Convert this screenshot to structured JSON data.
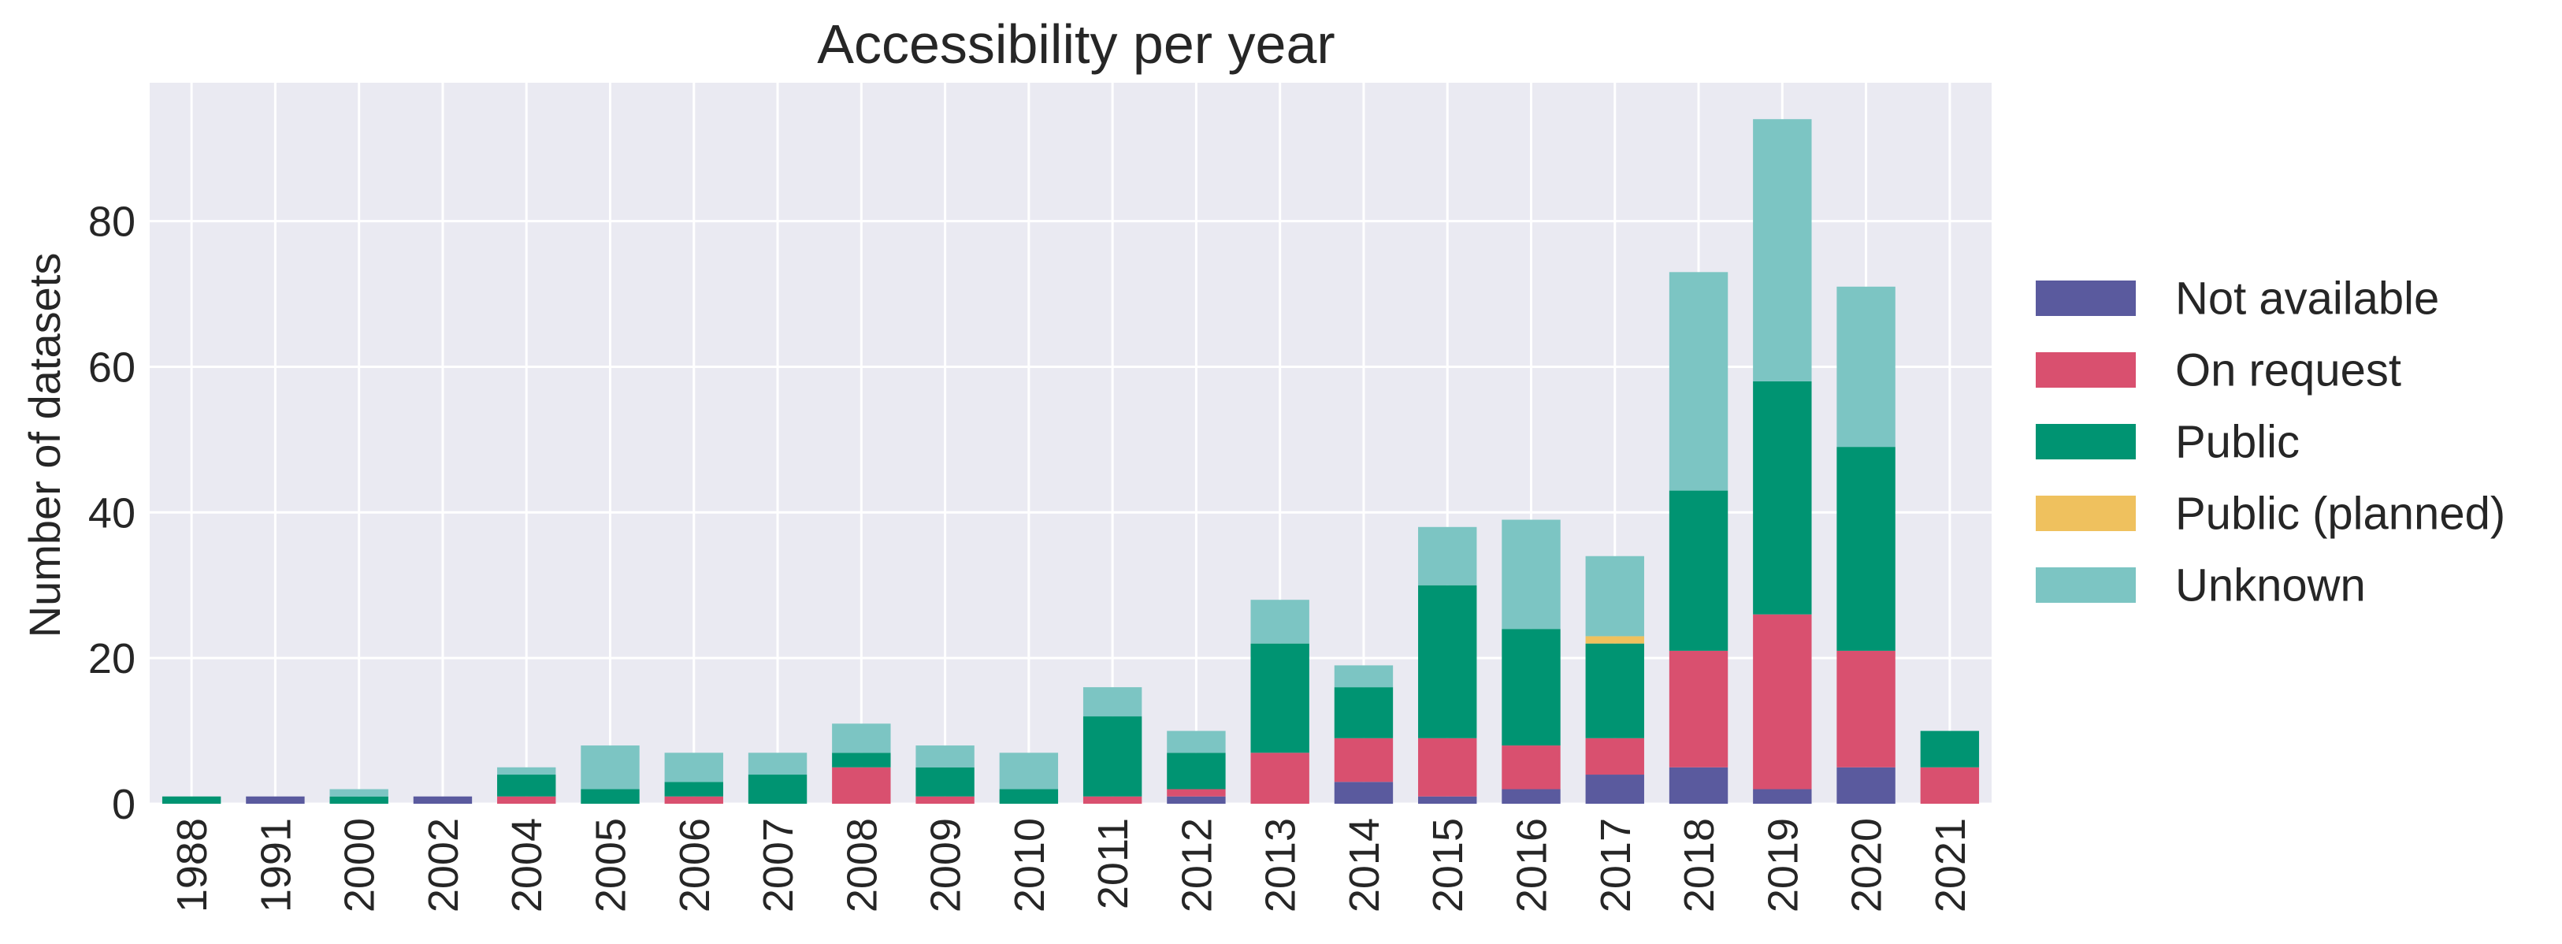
{
  "chart_data": {
    "type": "bar",
    "stacked": true,
    "title": "Accessibility per year",
    "xlabel": "",
    "ylabel": "Number of datasets",
    "categories": [
      "1988",
      "1991",
      "2000",
      "2002",
      "2004",
      "2005",
      "2006",
      "2007",
      "2008",
      "2009",
      "2010",
      "2011",
      "2012",
      "2013",
      "2014",
      "2015",
      "2016",
      "2017",
      "2018",
      "2019",
      "2020",
      "2021"
    ],
    "yticks": [
      0,
      20,
      40,
      60,
      80
    ],
    "ylim": [
      0,
      99
    ],
    "grid": true,
    "legend_position": "right",
    "series": [
      {
        "name": "Not available",
        "color": "#5a5a9e",
        "values": [
          0,
          1,
          0,
          1,
          0,
          0,
          0,
          0,
          0,
          0,
          0,
          0,
          1,
          0,
          3,
          1,
          2,
          4,
          5,
          2,
          5,
          0
        ]
      },
      {
        "name": "On request",
        "color": "#d9506f",
        "values": [
          0,
          0,
          0,
          0,
          1,
          0,
          1,
          0,
          5,
          1,
          0,
          1,
          1,
          7,
          6,
          8,
          6,
          5,
          16,
          24,
          16,
          5
        ]
      },
      {
        "name": "Public",
        "color": "#009472",
        "values": [
          1,
          0,
          1,
          0,
          3,
          2,
          2,
          4,
          2,
          4,
          2,
          11,
          5,
          15,
          7,
          21,
          16,
          13,
          22,
          32,
          28,
          5
        ]
      },
      {
        "name": "Public (planned)",
        "color": "#efc15e",
        "values": [
          0,
          0,
          0,
          0,
          0,
          0,
          0,
          0,
          0,
          0,
          0,
          0,
          0,
          0,
          0,
          0,
          0,
          1,
          0,
          0,
          0,
          0
        ]
      },
      {
        "name": "Unknown",
        "color": "#7cc5c3",
        "values": [
          0,
          0,
          1,
          0,
          1,
          6,
          4,
          3,
          4,
          3,
          5,
          4,
          3,
          6,
          3,
          8,
          15,
          11,
          30,
          36,
          22,
          0
        ]
      }
    ]
  }
}
